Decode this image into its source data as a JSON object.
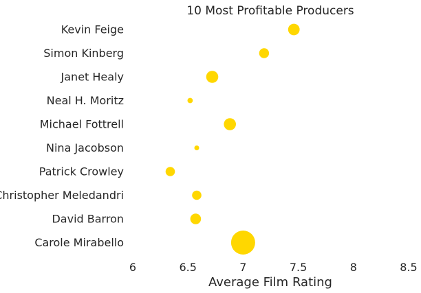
{
  "chart_data": {
    "type": "scatter",
    "title": "10 Most Profitable Producers",
    "xlabel": "Average Film Rating",
    "ylabel": "",
    "xlim": [
      6,
      8.5
    ],
    "xticks": [
      "6",
      "6.5",
      "7",
      "7.5",
      "8",
      "8.5"
    ],
    "grid": false,
    "color": "#FFD700",
    "categories": [
      "Kevin Feige",
      "Simon Kinberg",
      "Janet Healy",
      "Neal H. Moritz",
      "Michael Fottrell",
      "Nina Jacobson",
      "Patrick Crowley",
      "Christopher Meledandri",
      "David Barron",
      "Carole Mirabello"
    ],
    "x": [
      7.46,
      7.19,
      6.72,
      6.52,
      6.88,
      6.58,
      6.34,
      6.58,
      6.57,
      7.0
    ],
    "bubble_size": [
      23,
      17,
      25,
      5,
      25,
      4,
      15,
      15,
      20,
      100
    ]
  }
}
